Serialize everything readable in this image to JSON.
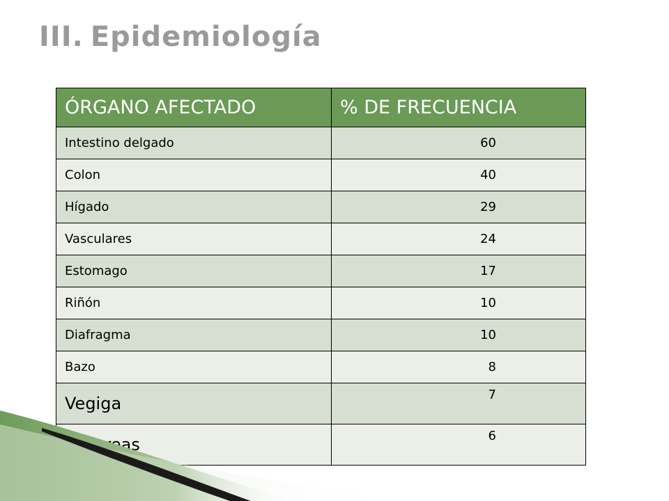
{
  "slide": {
    "title_numeral": "III.",
    "title_text": "Epidemiología"
  },
  "table": {
    "headers": [
      "ÓRGANO AFECTADO",
      "% DE FRECUENCIA"
    ],
    "rows": [
      {
        "organ": "Intestino delgado",
        "frequency": "60"
      },
      {
        "organ": "Colon",
        "frequency": "40"
      },
      {
        "organ": "Hígado",
        "frequency": "29"
      },
      {
        "organ": "Vasculares",
        "frequency": "24"
      },
      {
        "organ": "Estomago",
        "frequency": "17"
      },
      {
        "organ": "Riñón",
        "frequency": "10"
      },
      {
        "organ": "Diafragma",
        "frequency": "10"
      },
      {
        "organ": "Bazo",
        "frequency": "8"
      },
      {
        "organ": "Vegiga",
        "frequency": "7"
      },
      {
        "organ": "Páncreas",
        "frequency": "6"
      }
    ]
  },
  "colors": {
    "header_bg": "#6a9a55",
    "row_dark": "#d6dfd1",
    "row_light": "#ebefe8",
    "title": "#9a9a9a",
    "decor_green": "#7fa86a"
  }
}
